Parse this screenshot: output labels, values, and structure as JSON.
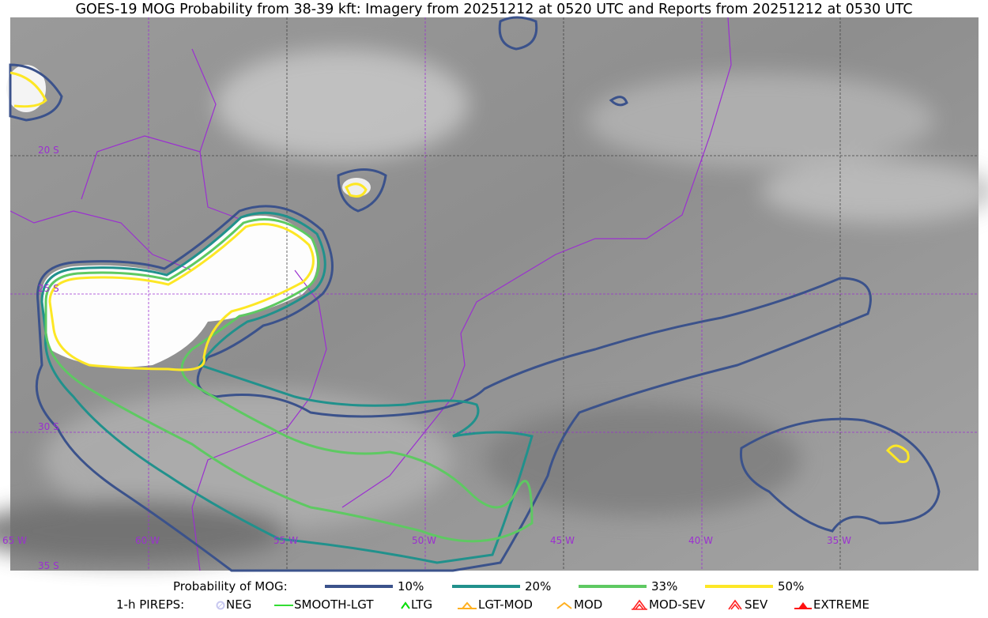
{
  "title": "GOES-19 MOG Probability from 38-39 kft: Imagery from 20251212 at 0520 UTC and Reports from 20251212 at 0530 UTC",
  "map": {
    "basemap": "satellite water-vapor/IR grayscale imagery",
    "lon_labels": [
      "65 W",
      "60 W",
      "55 W",
      "50 W",
      "45 W",
      "40 W",
      "35 W"
    ],
    "lat_labels": [
      "20 S",
      "25 S",
      "30 S",
      "35 S"
    ],
    "border_color": "#9b30d0"
  },
  "legend": {
    "probability": {
      "label": "Probability of MOG:",
      "levels": [
        {
          "label": "10%",
          "color": "#3b528b"
        },
        {
          "label": "20%",
          "color": "#21918c"
        },
        {
          "label": "33%",
          "color": "#5ec962"
        },
        {
          "label": "50%",
          "color": "#fde725"
        }
      ]
    },
    "pireps": {
      "label": "1-h PIREPS:",
      "items": [
        {
          "label": "NEG",
          "icon": "neg-circle-icon",
          "color": "#c8c8f0"
        },
        {
          "label": "SMOOTH-LGT",
          "icon": "line-icon",
          "color": "#33dd33"
        },
        {
          "label": "LTG",
          "icon": "caret-icon",
          "color": "#00dd00"
        },
        {
          "label": "LGT-MOD",
          "icon": "triangle-bar-icon",
          "color": "#ffb020"
        },
        {
          "label": "MOD",
          "icon": "caret-icon",
          "color": "#ffb020"
        },
        {
          "label": "MOD-SEV",
          "icon": "double-caret-icon",
          "color": "#ff2020"
        },
        {
          "label": "SEV",
          "icon": "double-caret-icon",
          "color": "#ff2020"
        },
        {
          "label": "EXTREME",
          "icon": "filled-triangle-icon",
          "color": "#ff1010"
        }
      ]
    }
  }
}
